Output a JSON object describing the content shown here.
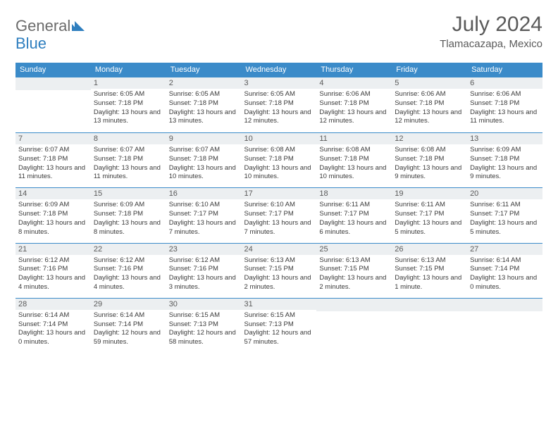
{
  "logo": {
    "text1": "General",
    "text2": "Blue"
  },
  "title": "July 2024",
  "location": "Tlamacazapa, Mexico",
  "colors": {
    "header_bg": "#3b8bc9",
    "header_fg": "#ffffff",
    "daynum_bg": "#eceff1",
    "text": "#3a3a3a",
    "title": "#5a5a5a",
    "logo_gray": "#6b6b6b",
    "logo_blue": "#2f7fbf",
    "row_border": "#3b8bc9"
  },
  "headers": [
    "Sunday",
    "Monday",
    "Tuesday",
    "Wednesday",
    "Thursday",
    "Friday",
    "Saturday"
  ],
  "weeks": [
    [
      {
        "n": "",
        "lines": []
      },
      {
        "n": "1",
        "lines": [
          "Sunrise: 6:05 AM",
          "Sunset: 7:18 PM",
          "Daylight: 13 hours and 13 minutes."
        ]
      },
      {
        "n": "2",
        "lines": [
          "Sunrise: 6:05 AM",
          "Sunset: 7:18 PM",
          "Daylight: 13 hours and 13 minutes."
        ]
      },
      {
        "n": "3",
        "lines": [
          "Sunrise: 6:05 AM",
          "Sunset: 7:18 PM",
          "Daylight: 13 hours and 12 minutes."
        ]
      },
      {
        "n": "4",
        "lines": [
          "Sunrise: 6:06 AM",
          "Sunset: 7:18 PM",
          "Daylight: 13 hours and 12 minutes."
        ]
      },
      {
        "n": "5",
        "lines": [
          "Sunrise: 6:06 AM",
          "Sunset: 7:18 PM",
          "Daylight: 13 hours and 12 minutes."
        ]
      },
      {
        "n": "6",
        "lines": [
          "Sunrise: 6:06 AM",
          "Sunset: 7:18 PM",
          "Daylight: 13 hours and 11 minutes."
        ]
      }
    ],
    [
      {
        "n": "7",
        "lines": [
          "Sunrise: 6:07 AM",
          "Sunset: 7:18 PM",
          "Daylight: 13 hours and 11 minutes."
        ]
      },
      {
        "n": "8",
        "lines": [
          "Sunrise: 6:07 AM",
          "Sunset: 7:18 PM",
          "Daylight: 13 hours and 11 minutes."
        ]
      },
      {
        "n": "9",
        "lines": [
          "Sunrise: 6:07 AM",
          "Sunset: 7:18 PM",
          "Daylight: 13 hours and 10 minutes."
        ]
      },
      {
        "n": "10",
        "lines": [
          "Sunrise: 6:08 AM",
          "Sunset: 7:18 PM",
          "Daylight: 13 hours and 10 minutes."
        ]
      },
      {
        "n": "11",
        "lines": [
          "Sunrise: 6:08 AM",
          "Sunset: 7:18 PM",
          "Daylight: 13 hours and 10 minutes."
        ]
      },
      {
        "n": "12",
        "lines": [
          "Sunrise: 6:08 AM",
          "Sunset: 7:18 PM",
          "Daylight: 13 hours and 9 minutes."
        ]
      },
      {
        "n": "13",
        "lines": [
          "Sunrise: 6:09 AM",
          "Sunset: 7:18 PM",
          "Daylight: 13 hours and 9 minutes."
        ]
      }
    ],
    [
      {
        "n": "14",
        "lines": [
          "Sunrise: 6:09 AM",
          "Sunset: 7:18 PM",
          "Daylight: 13 hours and 8 minutes."
        ]
      },
      {
        "n": "15",
        "lines": [
          "Sunrise: 6:09 AM",
          "Sunset: 7:18 PM",
          "Daylight: 13 hours and 8 minutes."
        ]
      },
      {
        "n": "16",
        "lines": [
          "Sunrise: 6:10 AM",
          "Sunset: 7:17 PM",
          "Daylight: 13 hours and 7 minutes."
        ]
      },
      {
        "n": "17",
        "lines": [
          "Sunrise: 6:10 AM",
          "Sunset: 7:17 PM",
          "Daylight: 13 hours and 7 minutes."
        ]
      },
      {
        "n": "18",
        "lines": [
          "Sunrise: 6:11 AM",
          "Sunset: 7:17 PM",
          "Daylight: 13 hours and 6 minutes."
        ]
      },
      {
        "n": "19",
        "lines": [
          "Sunrise: 6:11 AM",
          "Sunset: 7:17 PM",
          "Daylight: 13 hours and 5 minutes."
        ]
      },
      {
        "n": "20",
        "lines": [
          "Sunrise: 6:11 AM",
          "Sunset: 7:17 PM",
          "Daylight: 13 hours and 5 minutes."
        ]
      }
    ],
    [
      {
        "n": "21",
        "lines": [
          "Sunrise: 6:12 AM",
          "Sunset: 7:16 PM",
          "Daylight: 13 hours and 4 minutes."
        ]
      },
      {
        "n": "22",
        "lines": [
          "Sunrise: 6:12 AM",
          "Sunset: 7:16 PM",
          "Daylight: 13 hours and 4 minutes."
        ]
      },
      {
        "n": "23",
        "lines": [
          "Sunrise: 6:12 AM",
          "Sunset: 7:16 PM",
          "Daylight: 13 hours and 3 minutes."
        ]
      },
      {
        "n": "24",
        "lines": [
          "Sunrise: 6:13 AM",
          "Sunset: 7:15 PM",
          "Daylight: 13 hours and 2 minutes."
        ]
      },
      {
        "n": "25",
        "lines": [
          "Sunrise: 6:13 AM",
          "Sunset: 7:15 PM",
          "Daylight: 13 hours and 2 minutes."
        ]
      },
      {
        "n": "26",
        "lines": [
          "Sunrise: 6:13 AM",
          "Sunset: 7:15 PM",
          "Daylight: 13 hours and 1 minute."
        ]
      },
      {
        "n": "27",
        "lines": [
          "Sunrise: 6:14 AM",
          "Sunset: 7:14 PM",
          "Daylight: 13 hours and 0 minutes."
        ]
      }
    ],
    [
      {
        "n": "28",
        "lines": [
          "Sunrise: 6:14 AM",
          "Sunset: 7:14 PM",
          "Daylight: 13 hours and 0 minutes."
        ]
      },
      {
        "n": "29",
        "lines": [
          "Sunrise: 6:14 AM",
          "Sunset: 7:14 PM",
          "Daylight: 12 hours and 59 minutes."
        ]
      },
      {
        "n": "30",
        "lines": [
          "Sunrise: 6:15 AM",
          "Sunset: 7:13 PM",
          "Daylight: 12 hours and 58 minutes."
        ]
      },
      {
        "n": "31",
        "lines": [
          "Sunrise: 6:15 AM",
          "Sunset: 7:13 PM",
          "Daylight: 12 hours and 57 minutes."
        ]
      },
      {
        "n": "",
        "lines": []
      },
      {
        "n": "",
        "lines": []
      },
      {
        "n": "",
        "lines": []
      }
    ]
  ]
}
